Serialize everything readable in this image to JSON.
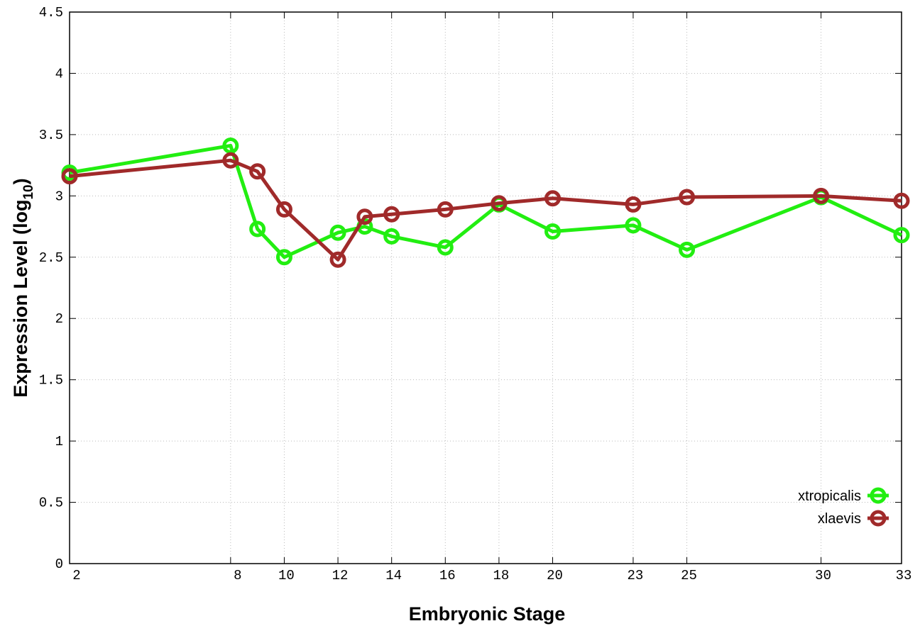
{
  "chart_data": {
    "type": "line",
    "title": "",
    "xlabel": "Embryonic Stage",
    "ylabel_main": "Expression Level (log",
    "ylabel_sub": "10",
    "ylabel_close": ")",
    "xlim": [
      2,
      33
    ],
    "ylim": [
      0,
      4.5
    ],
    "x_ticks": [
      2,
      8,
      10,
      12,
      14,
      16,
      18,
      20,
      23,
      25,
      30,
      33
    ],
    "y_ticks": [
      "0",
      "0.5",
      "1",
      "1.5",
      "2",
      "2.5",
      "3",
      "3.5",
      "4",
      "4.5"
    ],
    "grid": true,
    "legend_position": "bottom-right",
    "x": [
      2,
      8,
      9,
      10,
      12,
      13,
      14,
      16,
      18,
      20,
      23,
      25,
      30,
      33
    ],
    "series": [
      {
        "name": "xtropicalis",
        "color": "#22ee11",
        "values": [
          3.19,
          3.41,
          2.73,
          2.5,
          2.7,
          2.75,
          2.67,
          2.58,
          2.93,
          2.71,
          2.76,
          2.56,
          2.99,
          2.68
        ]
      },
      {
        "name": "xlaevis",
        "color": "#a02a2a",
        "values": [
          3.16,
          3.29,
          3.2,
          2.89,
          2.48,
          2.83,
          2.85,
          2.89,
          2.94,
          2.98,
          2.93,
          2.99,
          3.0,
          2.96
        ]
      }
    ]
  }
}
